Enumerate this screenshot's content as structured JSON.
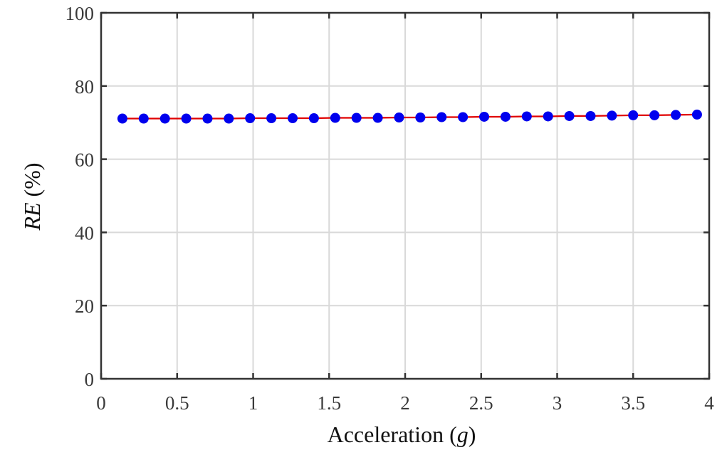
{
  "chart_data": {
    "type": "line",
    "xlabel_main": "Acceleration (",
    "xlabel_var": "g",
    "xlabel_end": ")",
    "ylabel_var": "RE",
    "ylabel_unit": " (%)",
    "xlim": [
      0,
      4
    ],
    "ylim": [
      0,
      100
    ],
    "grid": true,
    "x_ticks": [
      "0",
      "0.5",
      "1",
      "1.5",
      "2",
      "2.5",
      "3",
      "3.5",
      "4"
    ],
    "y_ticks": [
      "0",
      "20",
      "40",
      "60",
      "80",
      "100"
    ],
    "line_color": "#e00000",
    "marker_color": "#0000ee",
    "series": [
      {
        "x": [
          0.14,
          0.28,
          0.42,
          0.56,
          0.7,
          0.84,
          0.98,
          1.12,
          1.26,
          1.4,
          1.54,
          1.68,
          1.82,
          1.96,
          2.1,
          2.24,
          2.38,
          2.52,
          2.66,
          2.8,
          2.94,
          3.08,
          3.22,
          3.36,
          3.5,
          3.64,
          3.78,
          3.92
        ],
        "y": [
          71.1,
          71.1,
          71.1,
          71.1,
          71.1,
          71.1,
          71.2,
          71.2,
          71.2,
          71.2,
          71.3,
          71.3,
          71.3,
          71.4,
          71.4,
          71.5,
          71.5,
          71.6,
          71.6,
          71.7,
          71.7,
          71.8,
          71.8,
          71.9,
          72.0,
          72.0,
          72.1,
          72.2
        ]
      }
    ]
  }
}
